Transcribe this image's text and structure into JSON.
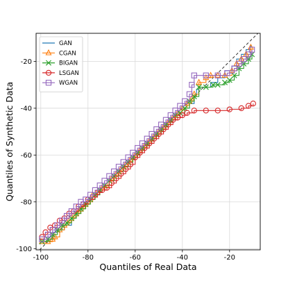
{
  "chart_data": {
    "type": "line",
    "title": "",
    "xlabel": "Quantiles of Real Data",
    "ylabel": "Quantiles of Synthetic Data",
    "xlim": [
      -102,
      -7
    ],
    "ylim": [
      -100.5,
      -8
    ],
    "xticks": [
      -100,
      -80,
      -60,
      -40,
      -20
    ],
    "yticks": [
      -100,
      -80,
      -60,
      -40,
      -20
    ],
    "grid": true,
    "legend_position": "top-left",
    "reference_line": {
      "style": "dashed",
      "color": "#000000",
      "points": [
        [
          -102,
          -102
        ],
        [
          -7,
          -7
        ]
      ]
    },
    "series": [
      {
        "name": "GAN",
        "color": "#1f77b4",
        "marker": "none",
        "x": [
          -99.5,
          -97,
          -95,
          -93,
          -90,
          -87,
          -85,
          -83,
          -81,
          -79,
          -77,
          -75,
          -73,
          -71,
          -69,
          -67,
          -65,
          -63,
          -61,
          -59,
          -57,
          -55,
          -53,
          -51,
          -49,
          -47,
          -45,
          -43,
          -41,
          -39,
          -37,
          -35,
          -34,
          -33,
          -30,
          -28,
          -25,
          -22,
          -19,
          -17,
          -15,
          -13,
          -11
        ],
        "y": [
          -97,
          -95,
          -93,
          -92,
          -90,
          -87,
          -84,
          -82,
          -80,
          -79,
          -77,
          -75,
          -73,
          -71,
          -69,
          -67,
          -65,
          -63,
          -61,
          -59,
          -57,
          -55,
          -53,
          -51,
          -49,
          -47,
          -45,
          -43,
          -42,
          -40,
          -38,
          -35,
          -32,
          -31,
          -31,
          -29,
          -27,
          -24,
          -22,
          -19,
          -17,
          -15,
          -13
        ]
      },
      {
        "name": "CGAN",
        "color": "#ff7f0e",
        "marker": "triangle",
        "x": [
          -99.5,
          -97,
          -95,
          -94,
          -92,
          -90,
          -88,
          -86,
          -84,
          -82,
          -80,
          -78,
          -76,
          -74,
          -72,
          -70,
          -68,
          -66,
          -64,
          -62,
          -60,
          -58,
          -56,
          -54,
          -52,
          -50,
          -48,
          -46,
          -44,
          -42,
          -40,
          -38,
          -36,
          -35,
          -33,
          -30,
          -28,
          -25,
          -22,
          -19,
          -17,
          -15,
          -13,
          -11
        ],
        "y": [
          -97,
          -97,
          -96,
          -95,
          -92,
          -90,
          -88,
          -86,
          -84,
          -82,
          -80,
          -77,
          -76,
          -74,
          -73,
          -70,
          -68,
          -66,
          -64,
          -62,
          -60,
          -58,
          -56,
          -54,
          -52,
          -50,
          -48,
          -46,
          -44,
          -42,
          -40,
          -38,
          -36,
          -34,
          -29,
          -27,
          -26,
          -26,
          -26,
          -24,
          -21,
          -19,
          -17,
          -14
        ]
      },
      {
        "name": "BIGAN",
        "color": "#2ca02c",
        "marker": "x",
        "x": [
          -99.5,
          -97,
          -95,
          -93,
          -91,
          -89,
          -87,
          -85,
          -83,
          -81,
          -79,
          -77,
          -75,
          -73,
          -71,
          -69,
          -67,
          -65,
          -63,
          -61,
          -59,
          -57,
          -55,
          -53,
          -51,
          -49,
          -47,
          -45,
          -43,
          -41,
          -39,
          -37,
          -35,
          -33,
          -30,
          -27,
          -25,
          -22,
          -20,
          -18,
          -16,
          -14,
          -12,
          -10.5
        ],
        "y": [
          -97,
          -96,
          -94,
          -92,
          -90,
          -89,
          -87,
          -85,
          -83,
          -81,
          -79,
          -77,
          -75,
          -73,
          -71,
          -69,
          -67,
          -65,
          -63,
          -61,
          -59,
          -57,
          -55,
          -53,
          -51,
          -49,
          -47,
          -45,
          -43,
          -42,
          -40,
          -37,
          -35,
          -31,
          -31,
          -30,
          -30,
          -29,
          -28,
          -26,
          -23,
          -21,
          -19,
          -17
        ]
      },
      {
        "name": "LSGAN",
        "color": "#d62728",
        "marker": "circle",
        "x": [
          -99.5,
          -98,
          -96,
          -94,
          -92,
          -90,
          -88,
          -86,
          -84,
          -82,
          -80,
          -78,
          -76,
          -74,
          -72,
          -70,
          -68,
          -66,
          -64,
          -62,
          -60,
          -58,
          -56,
          -54,
          -52,
          -50,
          -48,
          -46,
          -44,
          -42,
          -40,
          -38,
          -35,
          -30,
          -25,
          -20,
          -15,
          -12,
          -10
        ],
        "y": [
          -95,
          -93,
          -91,
          -90,
          -88,
          -87,
          -85,
          -84,
          -82,
          -81,
          -79,
          -78,
          -76,
          -75,
          -74,
          -72,
          -70,
          -68,
          -66,
          -64,
          -61,
          -59,
          -57,
          -55,
          -53,
          -51,
          -49,
          -47,
          -45,
          -44,
          -43,
          -42,
          -41,
          -41,
          -41,
          -40.5,
          -40,
          -39,
          -38
        ]
      },
      {
        "name": "WGAN",
        "color": "#9467bd",
        "marker": "square",
        "x": [
          -99.5,
          -97,
          -95,
          -93,
          -91,
          -89,
          -87,
          -85,
          -83,
          -81,
          -79,
          -77,
          -75,
          -73,
          -71,
          -69,
          -67,
          -65,
          -63,
          -61,
          -59,
          -57,
          -55,
          -53,
          -51,
          -49,
          -47,
          -45,
          -43,
          -41,
          -39,
          -37,
          -36,
          -35,
          -30,
          -25,
          -21,
          -18,
          -16,
          -14,
          -12,
          -10.5
        ],
        "y": [
          -96,
          -94,
          -92,
          -90,
          -88,
          -86,
          -84,
          -82,
          -80,
          -79,
          -77,
          -75,
          -73,
          -71,
          -69,
          -67,
          -65,
          -63,
          -61,
          -59,
          -57,
          -55,
          -53,
          -51,
          -49,
          -47,
          -45,
          -43,
          -41,
          -39,
          -37,
          -34,
          -30,
          -26,
          -26,
          -26,
          -25,
          -23,
          -21,
          -19,
          -17,
          -15
        ]
      }
    ]
  }
}
